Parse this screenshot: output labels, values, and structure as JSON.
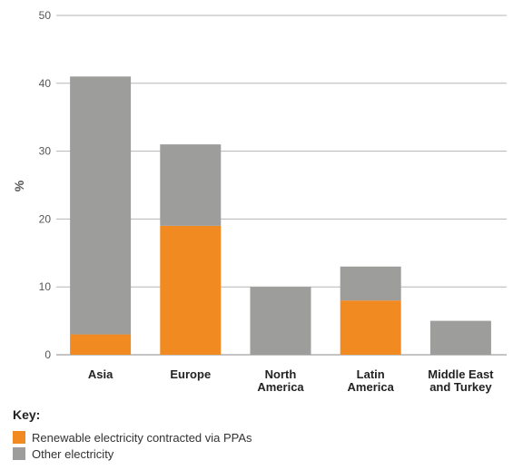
{
  "chart_data": {
    "type": "bar",
    "stacked": true,
    "categories": [
      "Asia",
      "Europe",
      "North America",
      "Latin America",
      "Middle East and Turkey"
    ],
    "category_label_lines": [
      [
        "Asia"
      ],
      [
        "Europe"
      ],
      [
        "North",
        "America"
      ],
      [
        "Latin",
        "America"
      ],
      [
        "Middle East",
        "and Turkey"
      ]
    ],
    "series": [
      {
        "name": "Renewable electricity contracted via PPAs",
        "color": "#f28a22",
        "values": [
          3,
          19,
          0,
          8,
          0
        ]
      },
      {
        "name": "Other electricity",
        "color": "#9d9d9c",
        "values": [
          38,
          12,
          10,
          5,
          5
        ]
      }
    ],
    "ylabel": "%",
    "ylim": [
      0,
      50
    ],
    "yticks": [
      0,
      10,
      20,
      30,
      40,
      50
    ],
    "grid": true,
    "legend_placement": "bottom-left"
  },
  "legend": {
    "title": "Key:",
    "items": [
      {
        "label": "Renewable electricity contracted via PPAs",
        "color": "#f28a22"
      },
      {
        "label": "Other electricity",
        "color": "#9d9d9c"
      }
    ]
  }
}
